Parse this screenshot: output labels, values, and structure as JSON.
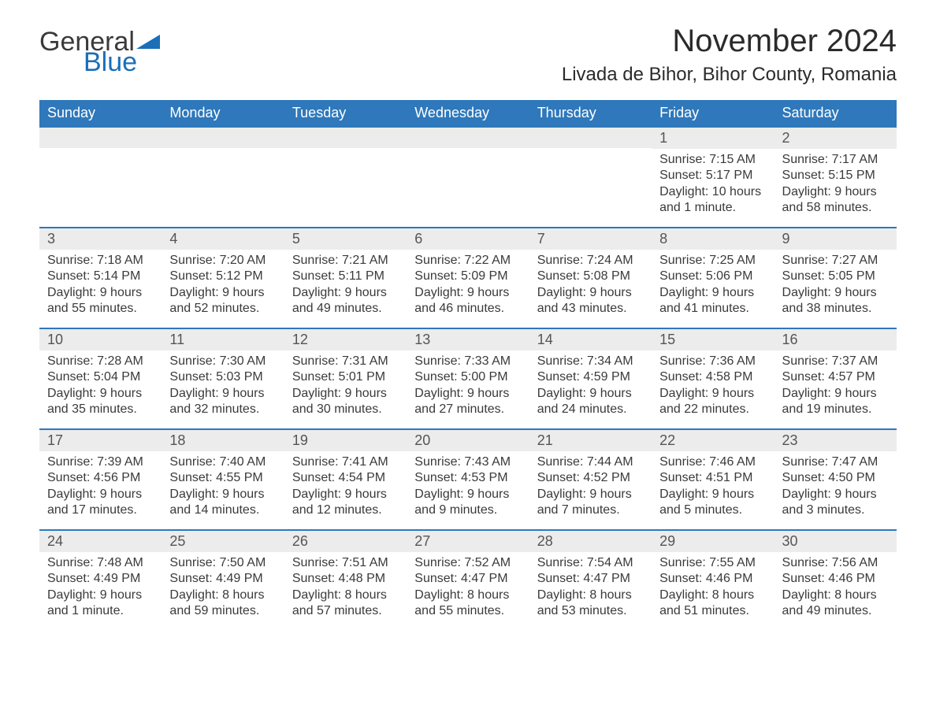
{
  "brand": {
    "general": "General",
    "blue": "Blue",
    "triangle_color": "#1a6fb8"
  },
  "title": "November 2024",
  "location": "Livada de Bihor, Bihor County, Romania",
  "colors": {
    "header_bg": "#2e78bb",
    "header_text": "#ffffff",
    "daynum_bg": "#ececec",
    "row_border": "#2e78bb",
    "text": "#3a3a3a"
  },
  "weekdays": [
    "Sunday",
    "Monday",
    "Tuesday",
    "Wednesday",
    "Thursday",
    "Friday",
    "Saturday"
  ],
  "weeks": [
    [
      {
        "day": null
      },
      {
        "day": null
      },
      {
        "day": null
      },
      {
        "day": null
      },
      {
        "day": null
      },
      {
        "day": "1",
        "sunrise": "Sunrise: 7:15 AM",
        "sunset": "Sunset: 5:17 PM",
        "daylight1": "Daylight: 10 hours",
        "daylight2": "and 1 minute."
      },
      {
        "day": "2",
        "sunrise": "Sunrise: 7:17 AM",
        "sunset": "Sunset: 5:15 PM",
        "daylight1": "Daylight: 9 hours",
        "daylight2": "and 58 minutes."
      }
    ],
    [
      {
        "day": "3",
        "sunrise": "Sunrise: 7:18 AM",
        "sunset": "Sunset: 5:14 PM",
        "daylight1": "Daylight: 9 hours",
        "daylight2": "and 55 minutes."
      },
      {
        "day": "4",
        "sunrise": "Sunrise: 7:20 AM",
        "sunset": "Sunset: 5:12 PM",
        "daylight1": "Daylight: 9 hours",
        "daylight2": "and 52 minutes."
      },
      {
        "day": "5",
        "sunrise": "Sunrise: 7:21 AM",
        "sunset": "Sunset: 5:11 PM",
        "daylight1": "Daylight: 9 hours",
        "daylight2": "and 49 minutes."
      },
      {
        "day": "6",
        "sunrise": "Sunrise: 7:22 AM",
        "sunset": "Sunset: 5:09 PM",
        "daylight1": "Daylight: 9 hours",
        "daylight2": "and 46 minutes."
      },
      {
        "day": "7",
        "sunrise": "Sunrise: 7:24 AM",
        "sunset": "Sunset: 5:08 PM",
        "daylight1": "Daylight: 9 hours",
        "daylight2": "and 43 minutes."
      },
      {
        "day": "8",
        "sunrise": "Sunrise: 7:25 AM",
        "sunset": "Sunset: 5:06 PM",
        "daylight1": "Daylight: 9 hours",
        "daylight2": "and 41 minutes."
      },
      {
        "day": "9",
        "sunrise": "Sunrise: 7:27 AM",
        "sunset": "Sunset: 5:05 PM",
        "daylight1": "Daylight: 9 hours",
        "daylight2": "and 38 minutes."
      }
    ],
    [
      {
        "day": "10",
        "sunrise": "Sunrise: 7:28 AM",
        "sunset": "Sunset: 5:04 PM",
        "daylight1": "Daylight: 9 hours",
        "daylight2": "and 35 minutes."
      },
      {
        "day": "11",
        "sunrise": "Sunrise: 7:30 AM",
        "sunset": "Sunset: 5:03 PM",
        "daylight1": "Daylight: 9 hours",
        "daylight2": "and 32 minutes."
      },
      {
        "day": "12",
        "sunrise": "Sunrise: 7:31 AM",
        "sunset": "Sunset: 5:01 PM",
        "daylight1": "Daylight: 9 hours",
        "daylight2": "and 30 minutes."
      },
      {
        "day": "13",
        "sunrise": "Sunrise: 7:33 AM",
        "sunset": "Sunset: 5:00 PM",
        "daylight1": "Daylight: 9 hours",
        "daylight2": "and 27 minutes."
      },
      {
        "day": "14",
        "sunrise": "Sunrise: 7:34 AM",
        "sunset": "Sunset: 4:59 PM",
        "daylight1": "Daylight: 9 hours",
        "daylight2": "and 24 minutes."
      },
      {
        "day": "15",
        "sunrise": "Sunrise: 7:36 AM",
        "sunset": "Sunset: 4:58 PM",
        "daylight1": "Daylight: 9 hours",
        "daylight2": "and 22 minutes."
      },
      {
        "day": "16",
        "sunrise": "Sunrise: 7:37 AM",
        "sunset": "Sunset: 4:57 PM",
        "daylight1": "Daylight: 9 hours",
        "daylight2": "and 19 minutes."
      }
    ],
    [
      {
        "day": "17",
        "sunrise": "Sunrise: 7:39 AM",
        "sunset": "Sunset: 4:56 PM",
        "daylight1": "Daylight: 9 hours",
        "daylight2": "and 17 minutes."
      },
      {
        "day": "18",
        "sunrise": "Sunrise: 7:40 AM",
        "sunset": "Sunset: 4:55 PM",
        "daylight1": "Daylight: 9 hours",
        "daylight2": "and 14 minutes."
      },
      {
        "day": "19",
        "sunrise": "Sunrise: 7:41 AM",
        "sunset": "Sunset: 4:54 PM",
        "daylight1": "Daylight: 9 hours",
        "daylight2": "and 12 minutes."
      },
      {
        "day": "20",
        "sunrise": "Sunrise: 7:43 AM",
        "sunset": "Sunset: 4:53 PM",
        "daylight1": "Daylight: 9 hours",
        "daylight2": "and 9 minutes."
      },
      {
        "day": "21",
        "sunrise": "Sunrise: 7:44 AM",
        "sunset": "Sunset: 4:52 PM",
        "daylight1": "Daylight: 9 hours",
        "daylight2": "and 7 minutes."
      },
      {
        "day": "22",
        "sunrise": "Sunrise: 7:46 AM",
        "sunset": "Sunset: 4:51 PM",
        "daylight1": "Daylight: 9 hours",
        "daylight2": "and 5 minutes."
      },
      {
        "day": "23",
        "sunrise": "Sunrise: 7:47 AM",
        "sunset": "Sunset: 4:50 PM",
        "daylight1": "Daylight: 9 hours",
        "daylight2": "and 3 minutes."
      }
    ],
    [
      {
        "day": "24",
        "sunrise": "Sunrise: 7:48 AM",
        "sunset": "Sunset: 4:49 PM",
        "daylight1": "Daylight: 9 hours",
        "daylight2": "and 1 minute."
      },
      {
        "day": "25",
        "sunrise": "Sunrise: 7:50 AM",
        "sunset": "Sunset: 4:49 PM",
        "daylight1": "Daylight: 8 hours",
        "daylight2": "and 59 minutes."
      },
      {
        "day": "26",
        "sunrise": "Sunrise: 7:51 AM",
        "sunset": "Sunset: 4:48 PM",
        "daylight1": "Daylight: 8 hours",
        "daylight2": "and 57 minutes."
      },
      {
        "day": "27",
        "sunrise": "Sunrise: 7:52 AM",
        "sunset": "Sunset: 4:47 PM",
        "daylight1": "Daylight: 8 hours",
        "daylight2": "and 55 minutes."
      },
      {
        "day": "28",
        "sunrise": "Sunrise: 7:54 AM",
        "sunset": "Sunset: 4:47 PM",
        "daylight1": "Daylight: 8 hours",
        "daylight2": "and 53 minutes."
      },
      {
        "day": "29",
        "sunrise": "Sunrise: 7:55 AM",
        "sunset": "Sunset: 4:46 PM",
        "daylight1": "Daylight: 8 hours",
        "daylight2": "and 51 minutes."
      },
      {
        "day": "30",
        "sunrise": "Sunrise: 7:56 AM",
        "sunset": "Sunset: 4:46 PM",
        "daylight1": "Daylight: 8 hours",
        "daylight2": "and 49 minutes."
      }
    ]
  ]
}
